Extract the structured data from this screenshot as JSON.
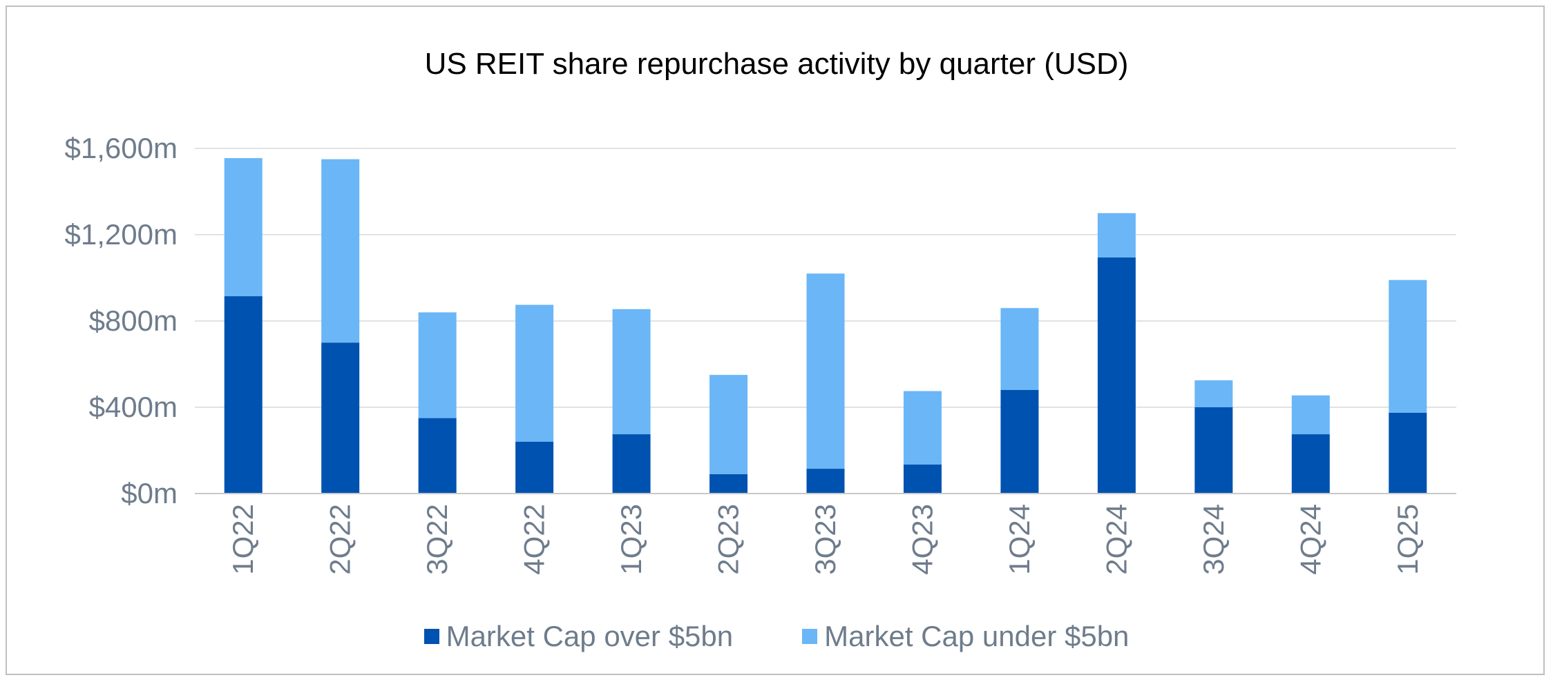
{
  "chart_data": {
    "type": "bar",
    "stacked": true,
    "title": "US REIT share repurchase activity by quarter (USD)",
    "xlabel": "",
    "ylabel": "",
    "ylim": [
      0,
      1600
    ],
    "yticks": [
      0,
      400,
      800,
      1200,
      1600
    ],
    "ytick_labels": [
      "$0m",
      "$400m",
      "$800m",
      "$1,200m",
      "$1,600m"
    ],
    "grid": true,
    "legend_position": "bottom",
    "categories": [
      "1Q22",
      "2Q22",
      "3Q22",
      "4Q22",
      "1Q23",
      "2Q23",
      "3Q23",
      "4Q23",
      "1Q24",
      "2Q24",
      "3Q24",
      "4Q24",
      "1Q25"
    ],
    "series": [
      {
        "name": "Market Cap over $5bn",
        "color": "#0052b0",
        "values": [
          915,
          700,
          350,
          240,
          275,
          90,
          115,
          135,
          480,
          1095,
          400,
          275,
          375
        ]
      },
      {
        "name": "Market Cap under $5bn",
        "color": "#6ab6f7",
        "values": [
          640,
          850,
          490,
          635,
          580,
          460,
          905,
          340,
          380,
          205,
          125,
          180,
          615
        ]
      }
    ]
  }
}
